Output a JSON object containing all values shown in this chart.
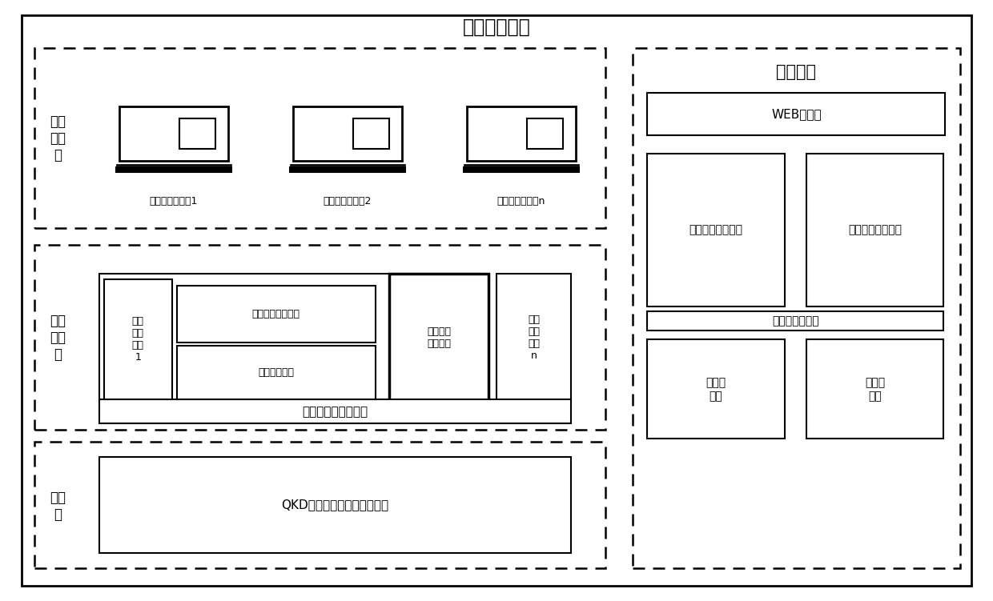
{
  "title": "量子通信系统",
  "bg_color": "#ffffff",
  "aux_title": "辅助系统",
  "app_layer_label": "密钥\n应用\n层",
  "mgmt_layer_label": "密钥\n管理\n层",
  "quantum_layer_label": "量子\n层",
  "device_labels": [
    "密钥应用层设备1",
    "密钥应用层设备2",
    "密钥应用层设备n"
  ],
  "mgmt_terminal1_text": "密钥\n管理\n终端\n1",
  "mgmt_output_text": "密钥输出控制软件",
  "mgmt_storage_text": "密钥存储软件",
  "mgmt_billing_text": "计费清单\n代理软件",
  "mgmt_terminaln_text": "密钥\n管理\n终端\nn",
  "mgmt_server_text": "量子密钥管理服务器",
  "qkd_text": "QKD设备：量子密钥分发设备",
  "web_text": "WEB展示层",
  "support_text": "量子业务支撑系统",
  "network_mgmt_text": "量子网络管理系统",
  "db_access_text": "数据库访问接口",
  "db_business_text": "业务数\n据库",
  "db_network_text": "网管数\n据库"
}
